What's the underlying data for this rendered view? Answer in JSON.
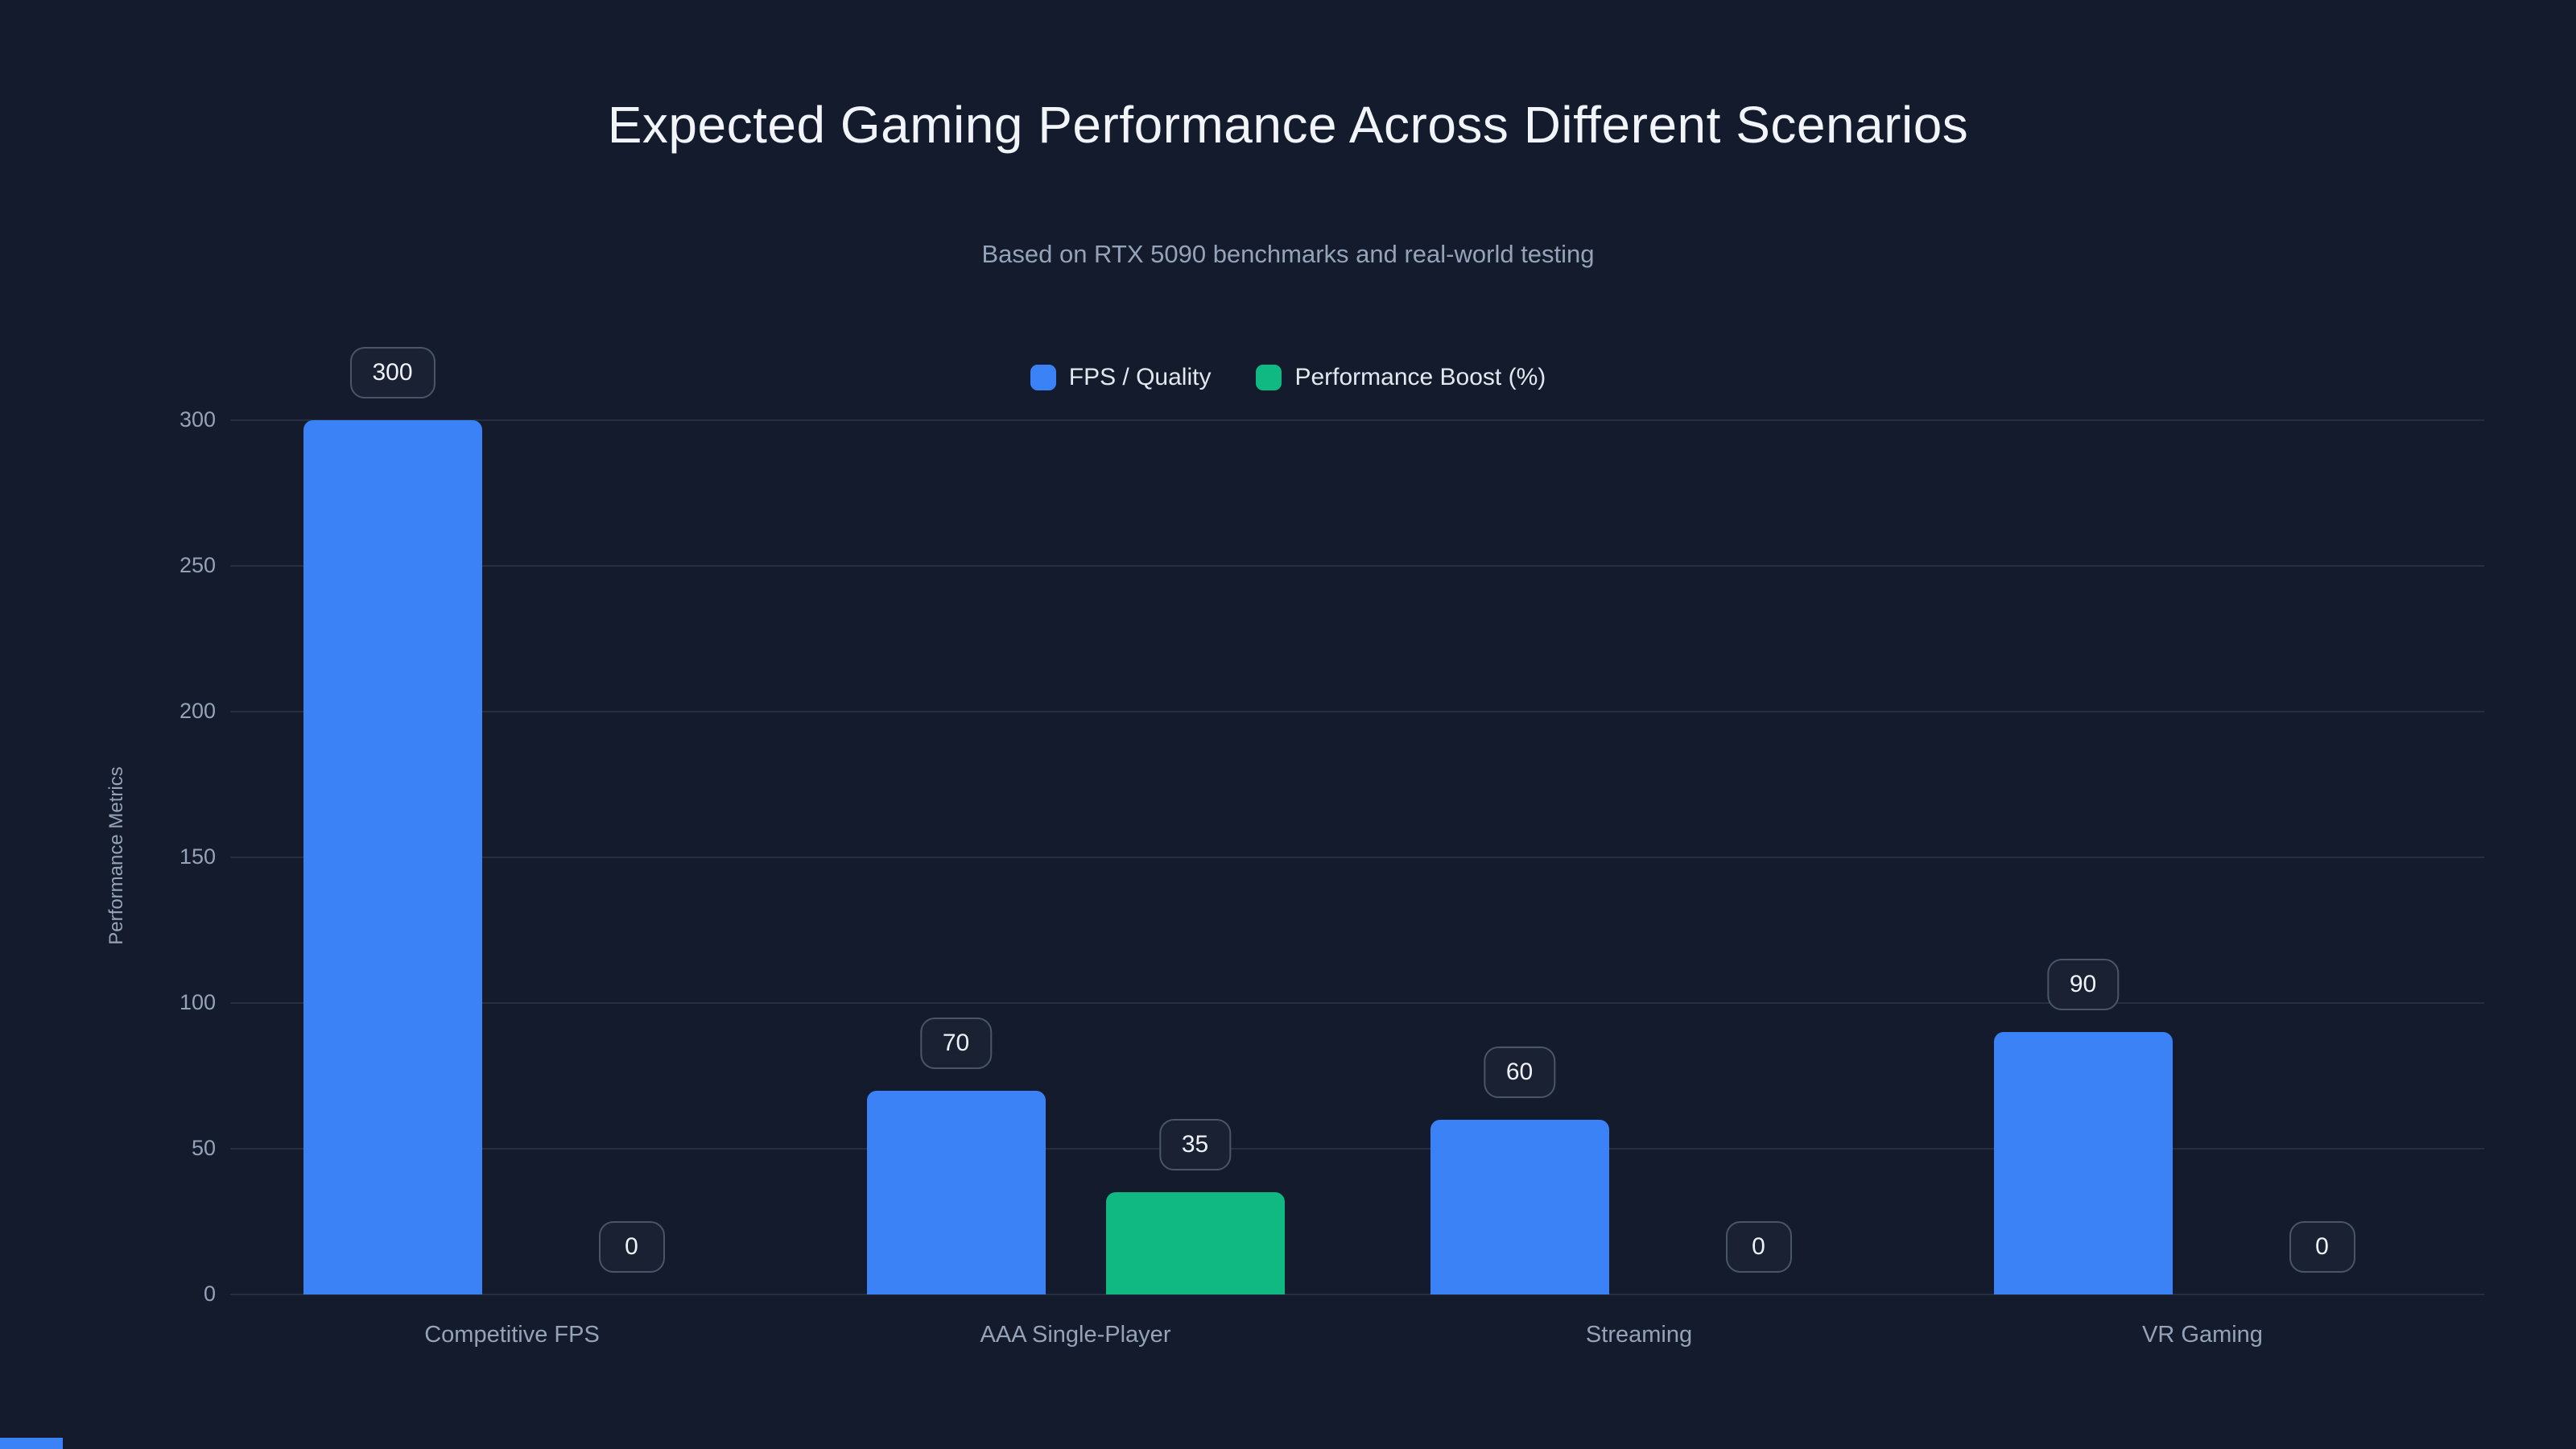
{
  "theme": {
    "background": "#141b2c",
    "title_color": "#f1f5f9",
    "muted_color": "#94a3b8",
    "legend_text": "#e2e8f0",
    "grid_color": "rgba(148,163,184,0.15)",
    "badge_bg": "#1a2132",
    "badge_border": "#4b5568",
    "badge_text": "#eef2f7",
    "accent_strip": "#3b82f6"
  },
  "header": {
    "title": "Expected Gaming Performance Across Different Scenarios",
    "subtitle": "Based on RTX 5090 benchmarks and real-world testing"
  },
  "chart_data": {
    "type": "bar",
    "title": "Expected Gaming Performance Across Different Scenarios",
    "subtitle": "Based on RTX 5090 benchmarks and real-world testing",
    "categories": [
      "Competitive FPS",
      "AAA Single-Player",
      "Streaming",
      "VR Gaming"
    ],
    "series": [
      {
        "name": "FPS / Quality",
        "color": "#3b82f6",
        "values": [
          300,
          70,
          60,
          90
        ]
      },
      {
        "name": "Performance Boost (%)",
        "color": "#10b981",
        "values": [
          0,
          35,
          0,
          0
        ]
      }
    ],
    "xlabel": "",
    "ylabel": "Performance Metrics",
    "ylim": [
      0,
      300
    ],
    "yticks": [
      0,
      50,
      100,
      150,
      200,
      250,
      300
    ],
    "grid": true,
    "legend_position": "top",
    "value_labels": true
  }
}
